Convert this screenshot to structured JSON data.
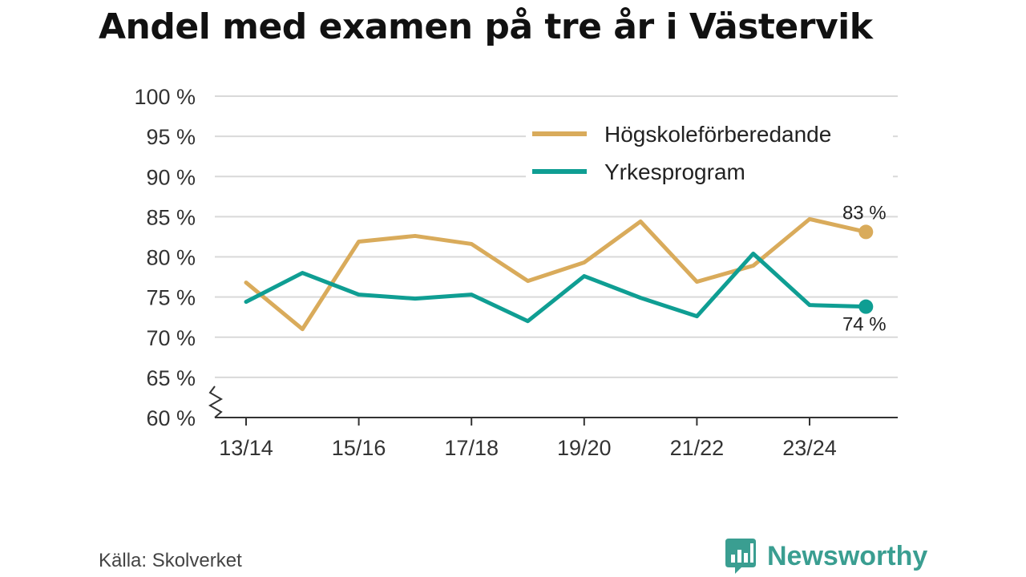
{
  "title": "Andel med examen på tre år i Västervik",
  "source": "Källa: Skolverket",
  "brand": {
    "name": "Newsworthy",
    "color": "#3a9e91",
    "icon": "bar-chart-speech-bubble-icon"
  },
  "chart_data": {
    "type": "line",
    "categories": [
      "13/14",
      "14/15",
      "15/16",
      "16/17",
      "17/18",
      "18/19",
      "19/20",
      "20/21",
      "21/22",
      "22/23",
      "23/24",
      "24/25"
    ],
    "x_tick_labels": [
      "13/14",
      "15/16",
      "17/18",
      "19/20",
      "21/22",
      "23/24"
    ],
    "y_tick_labels": [
      "60 %",
      "65 %",
      "70 %",
      "75 %",
      "80 %",
      "85 %",
      "90 %",
      "95 %",
      "100 %"
    ],
    "ylim": [
      60,
      100
    ],
    "y_axis_break": true,
    "grid": true,
    "legend_position": "top-right",
    "series": [
      {
        "name": "Högskoleförberedande",
        "color": "#d9ab5b",
        "values": [
          76.8,
          71.0,
          81.9,
          82.6,
          81.6,
          77.0,
          79.3,
          84.4,
          76.9,
          78.9,
          84.7,
          83.1
        ],
        "end_label": "83 %"
      },
      {
        "name": "Yrkesprogram",
        "color": "#0f9e93",
        "values": [
          74.4,
          78.0,
          75.3,
          74.8,
          75.3,
          72.0,
          77.6,
          74.9,
          72.6,
          80.4,
          74.0,
          73.8
        ],
        "end_label": "74 %"
      }
    ]
  }
}
